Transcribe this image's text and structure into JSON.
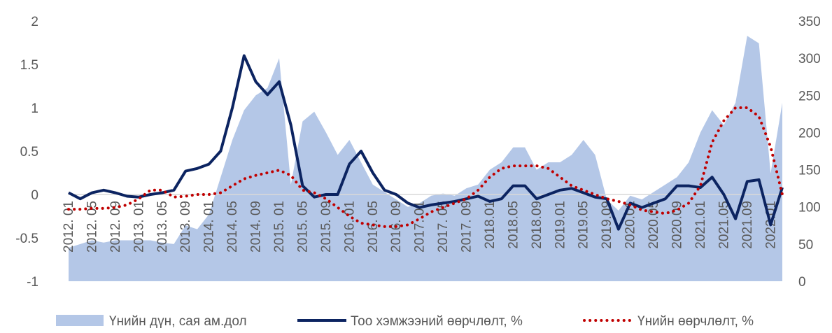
{
  "chart_data": {
    "type": "combo",
    "categories": [
      "2012. 01",
      null,
      "2012. 05",
      null,
      "2012. 09",
      null,
      "2013. 01",
      null,
      "2013. 05",
      null,
      "2013. 09",
      null,
      "2014. 01",
      null,
      "2014. 05",
      null,
      "2014. 09",
      null,
      "2015. 01",
      null,
      "2015. 05",
      null,
      "2015. 09",
      null,
      "2016. 01",
      null,
      "2016. 05",
      null,
      "2016. 09",
      null,
      "2017. 01",
      null,
      "2017. 05",
      null,
      "2017. 09",
      null,
      "2018.01",
      null,
      "2018.05",
      null,
      "2018.09",
      null,
      "2019.01",
      null,
      "2019.05",
      null,
      "2019.09",
      null,
      "2020.01",
      null,
      "2020.05",
      null,
      "2020.09",
      null,
      "2021.01",
      null,
      "2021.05",
      null,
      "2021.09",
      null,
      "2022.01",
      null
    ],
    "series": [
      {
        "name": "Үнийн дүн, сая ам.дол",
        "type": "area",
        "axis": "y2",
        "color": "#b4c7e7",
        "values": [
          45,
          50,
          55,
          52,
          55,
          55,
          55,
          55,
          52,
          50,
          75,
          70,
          90,
          140,
          190,
          230,
          250,
          260,
          300,
          130,
          215,
          228,
          200,
          170,
          190,
          160,
          130,
          120,
          110,
          100,
          105,
          115,
          118,
          115,
          125,
          130,
          150,
          160,
          180,
          180,
          150,
          160,
          160,
          170,
          190,
          170,
          110,
          95,
          115,
          110,
          120,
          130,
          140,
          160,
          200,
          230,
          210,
          240,
          330,
          320,
          145,
          240
        ]
      },
      {
        "name": "Тоо хэмжээний өөрчлөлт, %",
        "type": "line",
        "color": "#0c2461",
        "dashed": false,
        "values": [
          0.02,
          -0.05,
          0.02,
          0.05,
          0.02,
          -0.02,
          -0.03,
          0,
          0.02,
          0.05,
          0.27,
          0.3,
          0.35,
          0.5,
          1.0,
          1.6,
          1.3,
          1.15,
          1.3,
          0.8,
          0.1,
          -0.03,
          0,
          0,
          0.35,
          0.5,
          0.25,
          0.05,
          0,
          -0.1,
          -0.15,
          -0.12,
          -0.1,
          -0.08,
          -0.05,
          -0.02,
          -0.08,
          -0.05,
          0.1,
          0.1,
          -0.05,
          0,
          0.05,
          0.07,
          0.02,
          -0.03,
          -0.05,
          -0.4,
          -0.1,
          -0.15,
          -0.1,
          -0.05,
          0.1,
          0.1,
          0.08,
          0.2,
          0,
          -0.28,
          0.15,
          0.17,
          -0.35,
          0.08
        ]
      },
      {
        "name": "Үнийн өөрчлөлт, %",
        "type": "line",
        "color": "#c00000",
        "dashed": true,
        "values": [
          -0.17,
          -0.17,
          -0.16,
          -0.16,
          -0.15,
          -0.12,
          -0.05,
          0.05,
          0.05,
          -0.03,
          -0.02,
          0,
          0,
          0.02,
          0.1,
          0.18,
          0.22,
          0.25,
          0.28,
          0.22,
          0.05,
          0.02,
          -0.05,
          -0.15,
          -0.25,
          -0.33,
          -0.35,
          -0.37,
          -0.37,
          -0.35,
          -0.28,
          -0.2,
          -0.15,
          -0.1,
          -0.05,
          0.05,
          0.2,
          0.3,
          0.33,
          0.33,
          0.33,
          0.3,
          0.2,
          0.1,
          0.05,
          0,
          -0.05,
          -0.08,
          -0.12,
          -0.18,
          -0.2,
          -0.22,
          -0.18,
          -0.1,
          0.1,
          0.6,
          0.85,
          1.0,
          1.0,
          0.9,
          0.55,
          0
        ]
      }
    ],
    "ylim": [
      -1,
      2
    ],
    "yticks": [
      -1,
      -0.5,
      0,
      0.5,
      1,
      1.5,
      2
    ],
    "y2lim": [
      0,
      350
    ],
    "y2ticks": [
      0,
      50,
      100,
      150,
      200,
      250,
      300,
      350
    ],
    "grid": false,
    "legend": "bottom"
  }
}
